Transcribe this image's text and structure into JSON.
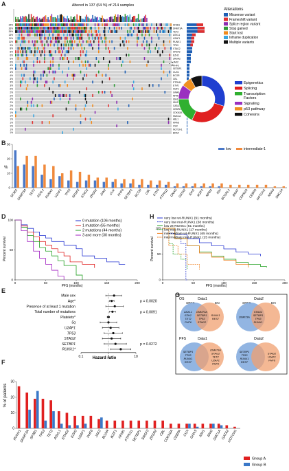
{
  "panels": {
    "a": "A",
    "b": "B",
    "c": "C",
    "d": "D",
    "e": "E",
    "f": "F",
    "g": "G",
    "h": "H"
  },
  "panelA": {
    "title": "Altered in 137 (64 %) of 214 samples",
    "alterations_title": "Alterations",
    "alterations": [
      {
        "name": "Missense variant",
        "color": "#1f5fb4"
      },
      {
        "name": "Frameshift variant",
        "color": "#e03030"
      },
      {
        "name": "Splice region variant",
        "color": "#8c2bb0"
      },
      {
        "name": "Stop gained",
        "color": "#2e9a37"
      },
      {
        "name": "Start lost",
        "color": "#f08a1c"
      },
      {
        "name": "Inframe duplication",
        "color": "#3aa6e0"
      },
      {
        "name": "Multiple variants",
        "color": "#111111"
      }
    ],
    "genes": [
      "SF3B1",
      "DNMT3A",
      "TET2",
      "ASXL1",
      "U2AF1",
      "RUNX1",
      "TP53",
      "STAG2",
      "SRSF2",
      "EZH2",
      "ZRSR2",
      "JAK2",
      "PHF6",
      "SETBP1",
      "CUX1",
      "BCOR",
      "CBL",
      "PTPN11",
      "ETV6",
      "IKZF1",
      "GNAS",
      "NPM1",
      "IDH1",
      "IDH2",
      "GATA2",
      "CEBPA",
      "CDKN2A",
      "SMC1A",
      "ABL1",
      "KRAS",
      "CSX",
      "NOTCH1",
      "BRAF"
    ],
    "percents": [
      "24%",
      "26%",
      "26%",
      "13%",
      "11%",
      "11%",
      "9%",
      "8%",
      "8%",
      "6%",
      "6%",
      "6%",
      "4%",
      "4%",
      "4%",
      "4%",
      "3%",
      "3%",
      "3%",
      "2%",
      "2%",
      "2%",
      "2%",
      "2%",
      "2%",
      "2%",
      "1%",
      "1%",
      "1%",
      "1%",
      "1%",
      "1%",
      "1%"
    ],
    "gene_counts": [
      24,
      26,
      26,
      13,
      11,
      11,
      9,
      8,
      8,
      6,
      6,
      6,
      4,
      4,
      4,
      4,
      3,
      3,
      3,
      2,
      2,
      2,
      2,
      2,
      2,
      2,
      1,
      1,
      1,
      1,
      1,
      1,
      1
    ]
  },
  "panelB": {
    "ylabel": "%",
    "legend": [
      {
        "name": "low",
        "color": "#4a78c8"
      },
      {
        "name": "intermediate-1",
        "color": "#f08a3c"
      }
    ],
    "chart_data": {
      "type": "bar",
      "categories": [
        "SF3B1",
        "DNMT3A",
        "TET2",
        "ASXL1",
        "RUNX1",
        "U2AF1",
        "TP53",
        "SRSF2",
        "STAG2",
        "ZRSR2",
        "JAK2",
        "CUX",
        "PHF6",
        "SETBP1",
        "BCOR",
        "CBL",
        "ETV6",
        "PTPN11",
        "GNAS",
        "GATA2",
        "IDH1",
        "IKZF1",
        "NPM1",
        "IDH",
        "BCORL1",
        "BRAF",
        "CDKN2A",
        "CEBPA",
        "NOTCH1",
        "NRAS",
        "SMC1A"
      ],
      "series": [
        {
          "name": "low",
          "values": [
            26,
            16,
            15,
            9,
            6,
            8,
            5,
            4,
            5,
            5,
            4,
            4,
            3,
            3,
            2,
            2,
            2,
            2,
            1,
            1,
            1,
            1,
            1,
            1,
            0,
            0,
            0,
            0,
            0,
            0,
            0
          ]
        },
        {
          "name": "intermediate-1",
          "values": [
            15,
            22,
            22,
            16,
            15,
            10,
            12,
            11,
            9,
            7,
            7,
            6,
            6,
            6,
            6,
            5,
            5,
            4,
            3,
            3,
            3,
            3,
            3,
            3,
            2,
            2,
            2,
            2,
            2,
            1,
            1
          ]
        }
      ],
      "ylim": [
        0,
        30
      ],
      "yticks": [
        "0",
        "10",
        "20",
        "30"
      ]
    }
  },
  "panelC": {
    "legend": [
      {
        "name": "Epigenetics",
        "color": "#1f3fd0"
      },
      {
        "name": "Splicing",
        "color": "#e02020"
      },
      {
        "name": "Transcription Factors",
        "color": "#30b030"
      },
      {
        "name": "Signaling",
        "color": "#9a30c0"
      },
      {
        "name": "p53 pathway",
        "color": "#f09020"
      },
      {
        "name": "Cohesins",
        "color": "#111111"
      }
    ],
    "chart_data": {
      "type": "pie",
      "labels": [
        "Epigenetics",
        "Splicing",
        "Transcription Factors",
        "Signaling",
        "p53 pathway",
        "Cohesins"
      ],
      "values": [
        30,
        27,
        18,
        10,
        7,
        8
      ]
    }
  },
  "panelD": {
    "ylabel": "Percent survival",
    "xlabel": "PFS (months)",
    "legend": [
      {
        "name": "0 mutation (106 months)",
        "color": "#2030d0"
      },
      {
        "name": "1 mutation (65 months)",
        "color": "#e02020"
      },
      {
        "name": "2 mutations (44 months)",
        "color": "#20a020"
      },
      {
        "name": "3 and more (30 months)",
        "color": "#a020c0"
      }
    ],
    "xticks": [
      "0",
      "50",
      "100",
      "150",
      "200"
    ],
    "yticks": [
      "0",
      "50",
      "100"
    ],
    "chart_data": {
      "type": "line",
      "xlim": [
        0,
        200
      ],
      "ylim": [
        0,
        100
      ],
      "series": [
        {
          "name": "0 mutation (106 months)",
          "x": [
            0,
            10,
            20,
            30,
            40,
            50,
            60,
            80,
            100,
            110,
            130,
            150,
            170,
            180
          ],
          "y": [
            100,
            92,
            86,
            80,
            74,
            70,
            64,
            58,
            52,
            40,
            36,
            30,
            26,
            26
          ]
        },
        {
          "name": "1 mutation (65 months)",
          "x": [
            0,
            10,
            20,
            30,
            40,
            50,
            60,
            70,
            80,
            90,
            110,
            130
          ],
          "y": [
            100,
            90,
            80,
            72,
            64,
            58,
            52,
            46,
            40,
            30,
            26,
            20
          ]
        },
        {
          "name": "2 mutations (44 months)",
          "x": [
            0,
            10,
            20,
            30,
            40,
            50,
            60,
            70,
            80,
            100,
            110
          ],
          "y": [
            100,
            88,
            74,
            64,
            54,
            48,
            40,
            32,
            24,
            8,
            0
          ]
        },
        {
          "name": "3 and more (30 months)",
          "x": [
            0,
            10,
            20,
            30,
            40,
            50,
            60,
            70,
            80
          ],
          "y": [
            100,
            82,
            64,
            48,
            36,
            26,
            16,
            6,
            0
          ]
        }
      ]
    }
  },
  "panelH": {
    "ylabel": "Percent survival",
    "xlabel": "PFS (months)",
    "legend": [
      {
        "name": "very low wt-RUNX1 (91 months)",
        "color": "#2030d0",
        "dash": ""
      },
      {
        "name": "very low mut-RUNX1 (38 months)",
        "color": "#2030d0",
        "dash": "2,1.2"
      },
      {
        "name": "low wt-RUNX1 (61 months)",
        "color": "#20a020",
        "dash": ""
      },
      {
        "name": "low mut-RUNX1 (17 months)",
        "color": "#20a020",
        "dash": "2,1.2"
      },
      {
        "name": "intermediate wt-RUNX1 (65 months)",
        "color": "#f08020",
        "dash": ""
      },
      {
        "name": "intermediate mut-RUNX1 (25 months)",
        "color": "#f08020",
        "dash": "2,1.2"
      }
    ],
    "xticks": [
      "0",
      "50",
      "100",
      "150",
      "200"
    ],
    "yticks": [
      "0",
      "50",
      "100"
    ],
    "chart_data": {
      "type": "line",
      "xlim": [
        0,
        200
      ],
      "ylim": [
        0,
        100
      ],
      "series": [
        {
          "name": "very low wt-RUNX1 (91 months)",
          "x": [
            0,
            20,
            40,
            60,
            80,
            100,
            120,
            140,
            160
          ],
          "y": [
            100,
            88,
            80,
            72,
            66,
            60,
            54,
            50,
            46
          ]
        },
        {
          "name": "very low mut-RUNX1 (38 months)",
          "x": [
            0,
            10,
            20,
            30,
            38,
            40
          ],
          "y": [
            100,
            90,
            80,
            70,
            0,
            0
          ]
        },
        {
          "name": "low wt-RUNX1 (61 months)",
          "x": [
            0,
            20,
            40,
            60,
            80,
            100,
            120,
            140,
            160,
            170
          ],
          "y": [
            100,
            80,
            66,
            54,
            46,
            40,
            34,
            30,
            26,
            24
          ]
        },
        {
          "name": "low mut-RUNX1 (17 months)",
          "x": [
            0,
            10,
            17,
            30,
            40
          ],
          "y": [
            100,
            70,
            50,
            40,
            20
          ]
        },
        {
          "name": "intermediate wt-RUNX1 (65 months)",
          "x": [
            0,
            20,
            40,
            60,
            80,
            100,
            120,
            140
          ],
          "y": [
            100,
            80,
            66,
            52,
            44,
            38,
            30,
            24
          ]
        },
        {
          "name": "intermediate mut-RUNX1 (25 months)",
          "x": [
            0,
            10,
            25,
            40,
            60
          ],
          "y": [
            100,
            66,
            50,
            30,
            20
          ]
        }
      ]
    }
  },
  "panelE": {
    "xlabel": "Hazard ratio",
    "xticks": [
      "0.1",
      "1",
      "10"
    ],
    "pvalues": [
      {
        "row": 1,
        "text": "p = 0.0020"
      },
      {
        "row": 3,
        "text": "p = 0.0091"
      },
      {
        "row": 9,
        "text": "p = 0.0272"
      }
    ],
    "chart_data": {
      "type": "scatter",
      "xscale": "log",
      "xlim": [
        0.1,
        10
      ],
      "rows": [
        "Male sex",
        "Age*",
        "Presence of at least 1 mutation",
        "Total number of mutations",
        "Platelets*",
        "5q",
        "U2AF1",
        "TP53",
        "STAG2",
        "SETBP1",
        "RUNX1*"
      ],
      "hr": [
        1.6,
        1.3,
        1.7,
        1.4,
        1.0,
        1.0,
        1.2,
        1.5,
        1.3,
        1.8,
        2.8
      ],
      "ci_low": [
        0.8,
        1.1,
        0.8,
        1.1,
        0.9,
        0.5,
        0.6,
        0.7,
        0.6,
        0.7,
        1.2
      ],
      "ci_high": [
        3.0,
        1.6,
        3.5,
        1.8,
        1.1,
        2.0,
        2.4,
        3.2,
        2.8,
        4.5,
        6.5
      ]
    }
  },
  "panelF": {
    "ylabel": "% of patients",
    "yticks": [
      "0",
      "10",
      "20",
      "30"
    ],
    "legend": [
      {
        "name": "Group A",
        "color": "#e02020"
      },
      {
        "name": "Group B",
        "color": "#3a78c8"
      }
    ],
    "chart_data": {
      "type": "bar",
      "categories": [
        "RUNX1",
        "DNMT3A",
        "SF3B1",
        "TP53",
        "TET2",
        "ASXL1",
        "STAG2",
        "EZH2",
        "U2AF1",
        "PHF6",
        "JAK2",
        "BCOR",
        "IKZF1",
        "NPM1",
        "PTPN11",
        "SETBP1",
        "SRSF2",
        "ZRSR2",
        "CBL",
        "CDKN2A",
        "CEBPA",
        "CUX",
        "GNAS",
        "IDH1",
        "IDH2",
        "SMC1A",
        "GATA2",
        "NOTCH1"
      ],
      "series": [
        {
          "name": "Group A",
          "values": [
            27,
            23,
            19,
            19,
            18,
            11,
            10,
            8,
            8,
            8,
            6,
            5,
            5,
            5,
            5,
            5,
            5,
            5,
            5,
            3,
            3,
            3,
            3,
            3,
            3,
            3,
            2,
            1
          ]
        },
        {
          "name": "Group B",
          "values": [
            0,
            12,
            24,
            5,
            11,
            3,
            2,
            2,
            3,
            0,
            7,
            0,
            0,
            0,
            0,
            0,
            0,
            0,
            0,
            0,
            0,
            3,
            1,
            0,
            3,
            2,
            0,
            0
          ]
        }
      ],
      "ylim": [
        0,
        30
      ]
    }
  },
  "panelG": {
    "sections": [
      {
        "tag": "OS",
        "dataset": "Data1",
        "left": "SBFS",
        "right": "EN",
        "left_genes": [
          "ASXL1",
          "EZH2",
          "TET2",
          "PHF6"
        ],
        "mid_genes": [
          "DNMT3A",
          "SETBP1",
          "TP53",
          "STAG2"
        ],
        "right_genes": [
          "RUNX1",
          "REST"
        ]
      },
      {
        "tag": "",
        "dataset": "Data2",
        "left": "SBFS",
        "right": "EN",
        "left_genes": [
          "DNMT3A"
        ],
        "mid_genes": [
          "STAG2",
          "SETBP1",
          "TP53",
          "RUNX1"
        ],
        "right_genes": []
      },
      {
        "tag": "PFS",
        "dataset": "Data1",
        "left": "",
        "right": "",
        "left_genes": [
          "SETBP1",
          "TP53",
          "RUNX1",
          "REST"
        ],
        "mid_genes": [],
        "right_genes": [
          "DNMT3A",
          "STAG2",
          "TET2",
          "U2AF1",
          "PHF6"
        ]
      },
      {
        "tag": "",
        "dataset": "Data2",
        "left": "",
        "right": "",
        "left_genes": [
          "SETBP1",
          "TP53",
          "RUNX1",
          "REST"
        ],
        "mid_genes": [],
        "right_genes": [
          "STAG2",
          "U2AF1",
          "PHF6"
        ]
      }
    ]
  }
}
